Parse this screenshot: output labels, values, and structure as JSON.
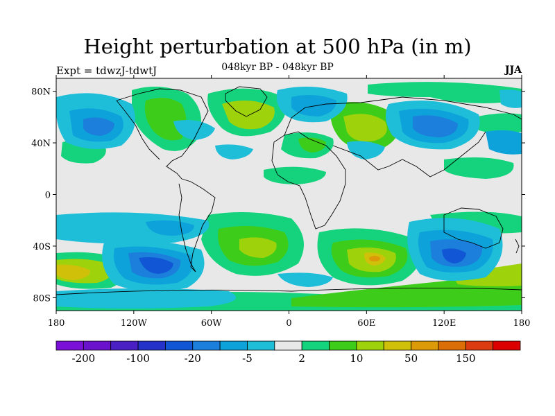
{
  "title": "Height perturbation at 500 hPa (in m)",
  "subtitle": "048kyr BP - 048kyr BP",
  "experiment": "Expt = tdwzJ-tdwtJ",
  "season": "JJA",
  "lat_ticks": [
    "80N",
    "40N",
    "0",
    "40S",
    "80S"
  ],
  "lat_values": [
    80,
    40,
    0,
    -40,
    -80
  ],
  "lon_ticks": [
    "180",
    "120W",
    "60W",
    "0",
    "60E",
    "120E",
    "180"
  ],
  "lon_values": [
    -180,
    -120,
    -60,
    0,
    60,
    120,
    180
  ],
  "colorbar": {
    "colors": [
      "#7b10d8",
      "#6a12cc",
      "#4a1fc4",
      "#2432c9",
      "#1156d4",
      "#1b7fdb",
      "#0da2d9",
      "#1ebed9",
      "#e8e8e8",
      "#14d37c",
      "#3ecc1a",
      "#9ed30c",
      "#d0c00a",
      "#dc9a08",
      "#dc6e07",
      "#dc3a10",
      "#dc0000"
    ],
    "labels": [
      "-200",
      "-100",
      "-20",
      "-5",
      "2",
      "10",
      "50",
      "150"
    ]
  }
}
